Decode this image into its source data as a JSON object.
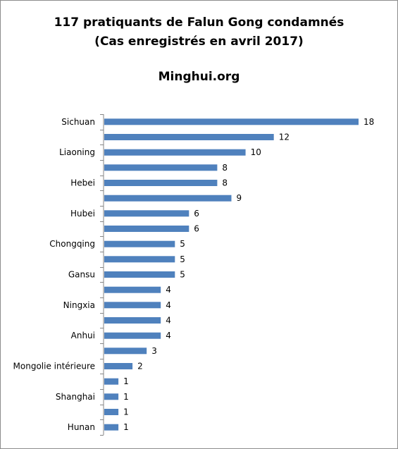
{
  "chart_data": {
    "type": "bar",
    "orientation": "horizontal",
    "title": "117 pratiquants  de Falun Gong condamnés",
    "subtitle": "(Cas enregistrés  en avril 2017)",
    "source": "Minghui.org",
    "categories": [
      "Sichuan",
      "",
      "Liaoning",
      "",
      "Hebei",
      "",
      "Hubei",
      "",
      "Chongqing",
      "",
      "Gansu",
      "",
      "Ningxia",
      "",
      "Anhui",
      "",
      "Mongolie intérieure",
      "",
      "Shanghai",
      "",
      "Hunan"
    ],
    "values": [
      18,
      12,
      10,
      8,
      8,
      9,
      6,
      6,
      5,
      5,
      5,
      4,
      4,
      4,
      4,
      3,
      2,
      1,
      1,
      1,
      1
    ],
    "xlim": [
      0,
      18
    ],
    "grid": false,
    "legend": "none",
    "bar_color": "#4f81bd"
  }
}
